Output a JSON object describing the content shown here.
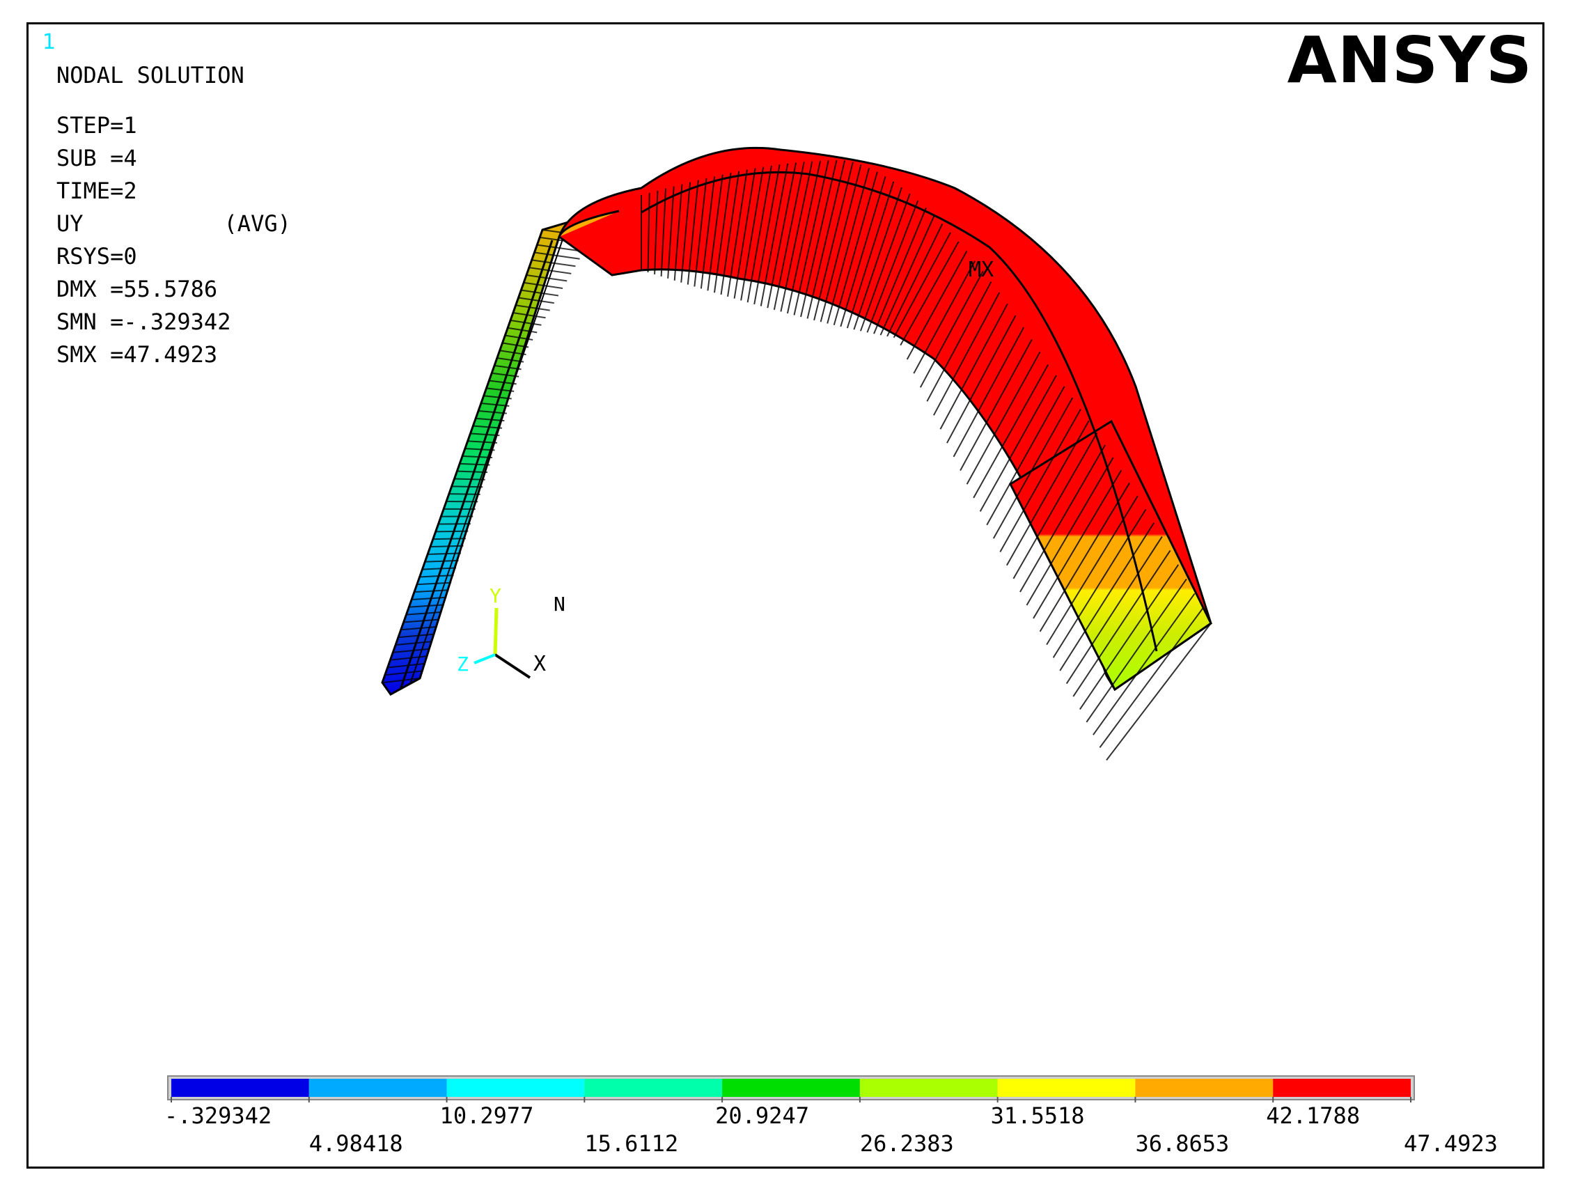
{
  "window_number": "1",
  "brand": "ANSYS",
  "info": {
    "title": "NODAL SOLUTION",
    "step": "STEP=1",
    "sub": "SUB =4",
    "time": "TIME=2",
    "quantity": "UY",
    "averaging": "(AVG)",
    "rsys": "RSYS=0",
    "dmx": "DMX =55.5786",
    "smn": "SMN =-.329342",
    "smx": "SMX =47.4923"
  },
  "model_labels": {
    "max_marker": "MX",
    "min_marker": "N"
  },
  "triad": {
    "x": "X",
    "y": "Y",
    "z": "Z"
  },
  "legend": {
    "colors": [
      "#0000e6",
      "#00aaff",
      "#00ffff",
      "#00ffaa",
      "#00dd00",
      "#aaff00",
      "#ffff00",
      "#ffaa00",
      "#ff0000"
    ],
    "labels_top": [
      "-.329342",
      "10.2977",
      "20.9247",
      "31.5518",
      "42.1788"
    ],
    "labels_bottom": [
      "4.98418",
      "15.6112",
      "26.2383",
      "36.8653",
      "47.4923"
    ]
  }
}
